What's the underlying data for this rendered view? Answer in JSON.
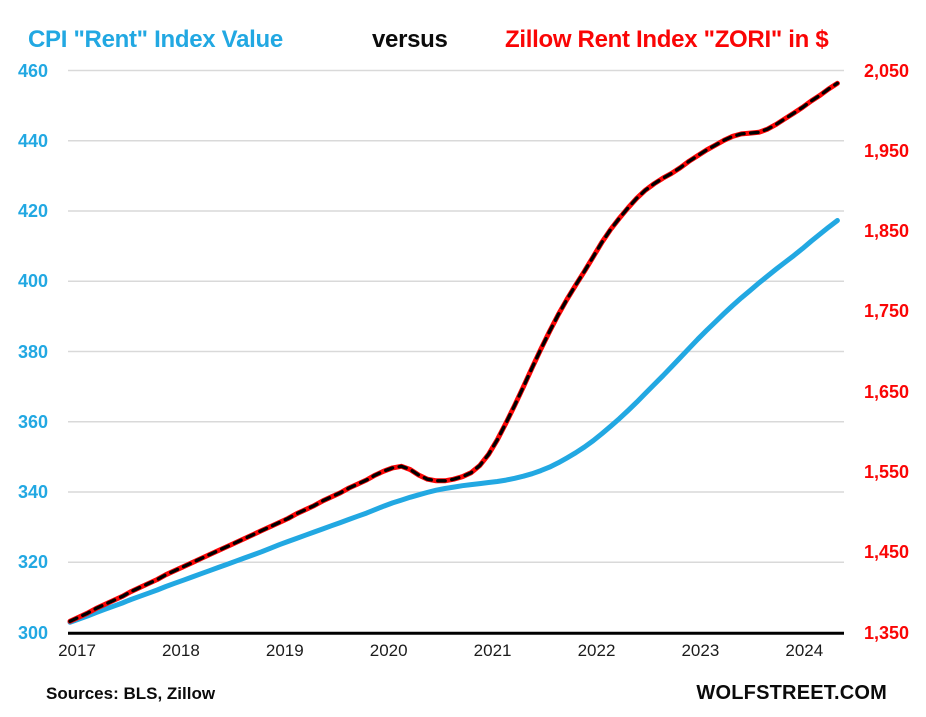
{
  "chart_data": {
    "type": "line",
    "title_parts": {
      "left": "CPI \"Rent\" Index Value",
      "middle": "versus",
      "right": "Zillow Rent Index \"ZORI\" in $"
    },
    "x_unit": "month",
    "x_start": "2017-01",
    "x_end": "2024-05",
    "x_tick_labels": [
      "2017",
      "2018",
      "2019",
      "2020",
      "2021",
      "2022",
      "2023",
      "2024"
    ],
    "left_axis": {
      "range": [
        300,
        460
      ],
      "ticks": [
        300,
        320,
        340,
        360,
        380,
        400,
        420,
        440,
        460
      ],
      "color": "#22A8E2"
    },
    "right_axis": {
      "range": [
        1350,
        2050
      ],
      "ticks": [
        1350,
        1450,
        1550,
        1650,
        1750,
        1850,
        1950,
        2050
      ],
      "color": "#FA0505"
    },
    "grid": true,
    "legend": "in-title",
    "series": [
      {
        "name": "CPI Rent Index Value",
        "axis": "left",
        "style": "solid",
        "color": "#22A8E2",
        "values": [
          302.9,
          303.8,
          304.7,
          305.7,
          306.6,
          307.5,
          308.4,
          309.4,
          310.3,
          311.2,
          312.1,
          313.1,
          314.0,
          314.9,
          315.8,
          316.7,
          317.6,
          318.5,
          319.4,
          320.3,
          321.2,
          322.1,
          323.0,
          324.0,
          325.0,
          325.9,
          326.8,
          327.7,
          328.6,
          329.5,
          330.4,
          331.3,
          332.2,
          333.1,
          334.0,
          335.0,
          336.0,
          336.9,
          337.7,
          338.5,
          339.2,
          339.9,
          340.5,
          341.0,
          341.4,
          341.8,
          342.1,
          342.4,
          342.7,
          343.0,
          343.4,
          343.9,
          344.5,
          345.2,
          346.1,
          347.1,
          348.3,
          349.7,
          351.2,
          352.8,
          354.6,
          356.6,
          358.7,
          360.9,
          363.2,
          365.6,
          368.1,
          370.6,
          373.1,
          375.7,
          378.3,
          380.9,
          383.5,
          386.0,
          388.4,
          390.8,
          393.1,
          395.3,
          397.4,
          399.5,
          401.5,
          403.5,
          405.4,
          407.3,
          409.3,
          411.4,
          413.4,
          415.4,
          417.3
        ]
      },
      {
        "name": "Zillow Rent Index ZORI in $",
        "axis": "right",
        "style": "solid-with-black-dash-overlay",
        "color": "#FA0505",
        "overlay_color": "#000000",
        "values": [
          1364,
          1369,
          1374,
          1380,
          1385,
          1390,
          1395,
          1401,
          1406,
          1411,
          1416,
          1422,
          1427,
          1432,
          1437,
          1442,
          1447,
          1452,
          1457,
          1462,
          1467,
          1472,
          1477,
          1482,
          1487,
          1492,
          1498,
          1503,
          1508,
          1514,
          1519,
          1524,
          1530,
          1535,
          1540,
          1546,
          1551,
          1555,
          1557,
          1553,
          1546,
          1541,
          1539,
          1539,
          1541,
          1544,
          1549,
          1558,
          1572,
          1590,
          1611,
          1633,
          1656,
          1680,
          1703,
          1725,
          1746,
          1765,
          1783,
          1800,
          1818,
          1836,
          1852,
          1866,
          1879,
          1891,
          1901,
          1909,
          1916,
          1922,
          1929,
          1937,
          1944,
          1951,
          1957,
          1963,
          1968,
          1971,
          1972,
          1973,
          1977,
          1983,
          1990,
          1997,
          2004,
          2012,
          2019,
          2027,
          2034
        ]
      }
    ]
  },
  "colors": {
    "grid": "#D9D9D9",
    "axis_line": "#000000"
  },
  "footer": {
    "sources": "Sources: BLS, Zillow",
    "brand": "WOLFSTREET.COM"
  }
}
